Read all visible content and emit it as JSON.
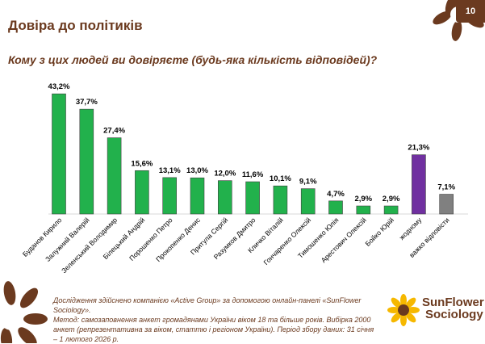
{
  "page_number": "10",
  "title": "Довіра до політиків",
  "question": "Кому з цих людей ви довіряєте (будь-яка кількість відповідей)?",
  "footer": {
    "line1": "Дослідження здійснено компанією «Active Group» за допомогою онлайн-панелі «SunFlower Sociology».",
    "line2": "Метод: самозаповнення анкет громадянами України віком 18 та більше років. Вибірка 2000 анкет (репрезентативна за віком, статтю і регіоном України). Період збору даних: 31 січня – 1 лютого 2026 р."
  },
  "logo": {
    "line1": "SunFlower",
    "line2": "Sociology"
  },
  "chart_data": {
    "type": "bar",
    "title": "Кому з цих людей ви довіряєте (будь-яка кількість відповідей)?",
    "xlabel": "",
    "ylabel": "",
    "ylim": [
      0,
      45
    ],
    "categories": [
      "Буданов Кирило",
      "Залужний Валерій",
      "Зеленський Володимир",
      "Білецький Андрій",
      "Порошенко Петро",
      "Прокопенко Денис",
      "Притула Сергій",
      "Разумков Дмитро",
      "Кличко Віталій",
      "Гончаренко Олексій",
      "Тимошенко Юлія",
      "Арестович Олексій",
      "Бойко Юрій",
      "жодному",
      "важко відповісти"
    ],
    "values": [
      43.2,
      37.7,
      27.4,
      15.6,
      13.1,
      13.0,
      12.0,
      11.6,
      10.1,
      9.1,
      4.7,
      2.9,
      2.9,
      21.3,
      7.1
    ],
    "labels": [
      "43,2%",
      "37,7%",
      "27,4%",
      "15,6%",
      "13,1%",
      "13,0%",
      "12,0%",
      "11,6%",
      "10,1%",
      "9,1%",
      "4,7%",
      "2,9%",
      "2,9%",
      "21,3%",
      "7,1%"
    ],
    "colors": [
      "#22b14c",
      "#22b14c",
      "#22b14c",
      "#22b14c",
      "#22b14c",
      "#22b14c",
      "#22b14c",
      "#22b14c",
      "#22b14c",
      "#22b14c",
      "#22b14c",
      "#22b14c",
      "#22b14c",
      "#7030a0",
      "#808080"
    ]
  },
  "colors": {
    "brand_brown": "#6b3a1f",
    "sunflower_yellow": "#f6b800"
  }
}
